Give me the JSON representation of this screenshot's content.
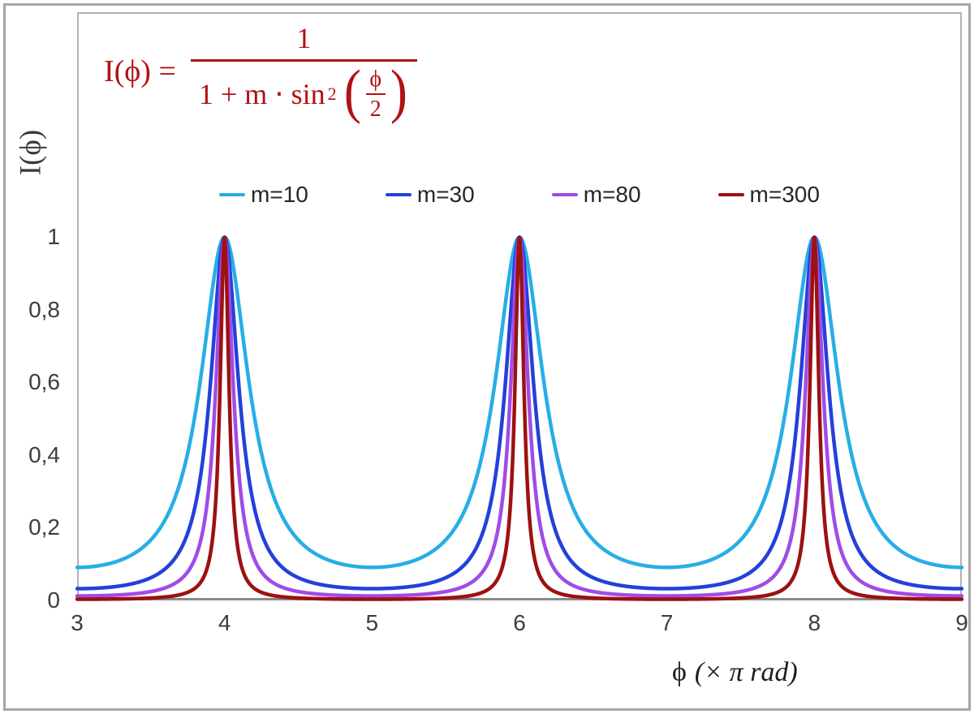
{
  "figure": {
    "background": "#ffffff",
    "outer_border_color": "#a6a6a6",
    "axis_line_color": "#8a8a8a",
    "plot_border_color": "#b3b3b3"
  },
  "formula": {
    "color": "#b01212",
    "lhs": "I(ϕ) =",
    "numerator": "1",
    "den_main": "1 + m ⋅ sin",
    "den_exponent": "2",
    "paren_open": "(",
    "paren_close": ")",
    "inner_numerator": "ϕ",
    "inner_denominator": "2"
  },
  "legend": {
    "items": [
      {
        "label": "m=10",
        "color": "#27aee5"
      },
      {
        "label": "m=30",
        "color": "#2440da"
      },
      {
        "label": "m=80",
        "color": "#a04ce6"
      },
      {
        "label": "m=300",
        "color": "#9c1111"
      }
    ]
  },
  "axes": {
    "x": {
      "title_symbol": "ϕ",
      "title_unit": "(× π rad)",
      "ticks": [
        {
          "label": "3",
          "value": 3
        },
        {
          "label": "4",
          "value": 4
        },
        {
          "label": "5",
          "value": 5
        },
        {
          "label": "6",
          "value": 6
        },
        {
          "label": "7",
          "value": 7
        },
        {
          "label": "8",
          "value": 8
        },
        {
          "label": "9",
          "value": 9
        }
      ]
    },
    "y": {
      "title": "I(ϕ)",
      "ticks": [
        {
          "label": "0",
          "value": 0
        },
        {
          "label": "0,2",
          "value": 0.2
        },
        {
          "label": "0,4",
          "value": 0.4
        },
        {
          "label": "0,6",
          "value": 0.6
        },
        {
          "label": "0,8",
          "value": 0.8
        },
        {
          "label": "1",
          "value": 1
        }
      ]
    }
  },
  "chart_data": {
    "type": "line",
    "title": "",
    "xlabel": "ϕ (× π rad)",
    "ylabel": "I(ϕ)",
    "function": "I(phi) = 1 / (1 + m * sin^2(phi/2)), phi in units of pi rad",
    "x_range_pi": [
      3,
      9
    ],
    "ylim": [
      0,
      1.62
    ],
    "x_tick_values": [
      3,
      4,
      5,
      6,
      7,
      8,
      9
    ],
    "y_tick_values": [
      0,
      0.2,
      0.4,
      0.6,
      0.8,
      1
    ],
    "peaks_at_x_pi": [
      4,
      6,
      8
    ],
    "peak_value": 1,
    "minima_value_formula": "1/(1+m)",
    "sample_step_pi": 0.0025,
    "line_width": 4.5,
    "grid": false,
    "legend_position": "top-center",
    "series": [
      {
        "name": "m=10",
        "m": 10,
        "color": "#27aee5",
        "min_value": 0.0909
      },
      {
        "name": "m=30",
        "m": 30,
        "color": "#2440da",
        "min_value": 0.0323
      },
      {
        "name": "m=80",
        "m": 80,
        "color": "#a04ce6",
        "min_value": 0.0123
      },
      {
        "name": "m=300",
        "m": 300,
        "color": "#9c1111",
        "min_value": 0.0033
      }
    ]
  }
}
